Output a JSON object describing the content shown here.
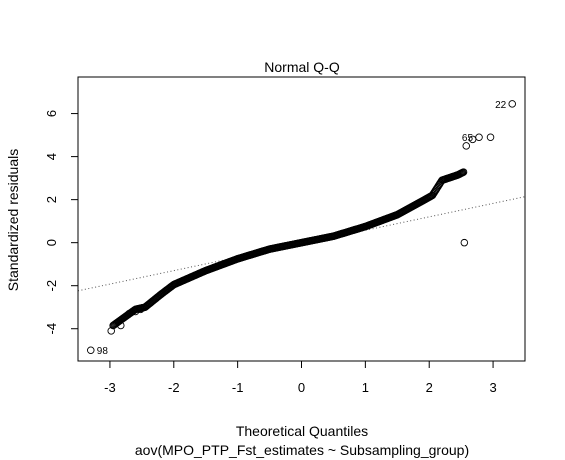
{
  "chart_data": {
    "type": "scatter",
    "title": "Normal Q-Q",
    "xlabel": "Theoretical Quantiles",
    "subtitle": "aov(MPO_PTP_Fst_estimates ~ Subsampling_group)",
    "ylabel": "Standardized residuals",
    "xlim": [
      -3.5,
      3.5
    ],
    "ylim": [
      -5.5,
      7.7
    ],
    "x_ticks": [
      -3,
      -2,
      -1,
      0,
      1,
      2,
      3
    ],
    "x_tick_labels": [
      "-3",
      "-2",
      "-1",
      "0",
      "1",
      "2",
      "3"
    ],
    "y_ticks": [
      -4,
      -2,
      0,
      2,
      4,
      6
    ],
    "y_tick_labels": [
      "-4",
      "-2",
      "0",
      "2",
      "4",
      "6"
    ],
    "grid": false,
    "reference_line": {
      "slope": 0.625,
      "intercept": -0.05,
      "style": "dotted"
    },
    "curve_anchors": [
      [
        -2.95,
        -3.85
      ],
      [
        -2.6,
        -3.1
      ],
      [
        -2.45,
        -3.0
      ],
      [
        -2.2,
        -2.4
      ],
      [
        -2.0,
        -1.95
      ],
      [
        -1.5,
        -1.3
      ],
      [
        -1.0,
        -0.75
      ],
      [
        -0.5,
        -0.3
      ],
      [
        0.0,
        0.0
      ],
      [
        0.5,
        0.3
      ],
      [
        1.0,
        0.75
      ],
      [
        1.5,
        1.3
      ],
      [
        1.9,
        1.95
      ],
      [
        2.05,
        2.2
      ],
      [
        2.2,
        2.9
      ],
      [
        2.45,
        3.15
      ],
      [
        2.55,
        3.3
      ]
    ],
    "series": [
      {
        "points": [
          [
            -3.3,
            -5.0
          ],
          [
            -2.98,
            -4.1
          ],
          [
            -2.83,
            -3.85
          ],
          [
            -2.7,
            -3.3
          ],
          [
            -2.6,
            -3.2
          ],
          [
            -2.52,
            -3.1
          ],
          [
            2.58,
            4.5
          ],
          [
            2.68,
            4.8
          ],
          [
            2.78,
            4.9
          ],
          [
            2.96,
            4.9
          ],
          [
            3.3,
            6.45
          ]
        ]
      }
    ],
    "annotations": [
      {
        "text": "98",
        "x": -3.3,
        "y": -5.0,
        "side": "right"
      },
      {
        "text": "65",
        "x": 2.78,
        "y": 4.9,
        "side": "left"
      },
      {
        "text": "22",
        "x": 3.3,
        "y": 6.45,
        "side": "left"
      }
    ]
  }
}
